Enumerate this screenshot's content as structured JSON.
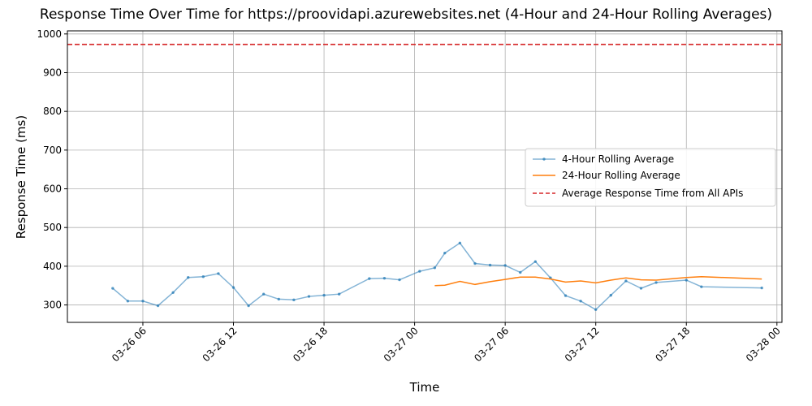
{
  "chart_data": {
    "type": "line",
    "title": "Response Time Over Time for https://proovidapi.azurewebsites.net (4-Hour and 24-Hour Rolling Averages)",
    "xlabel": "Time",
    "ylabel": "Response Time (ms)",
    "ylim": [
      255,
      1008
    ],
    "xlim": [
      "03-26 01:00",
      "03-28 00:20"
    ],
    "x_ticks": [
      "03-26 06",
      "03-26 12",
      "03-26 18",
      "03-27 00",
      "03-27 06",
      "03-27 12",
      "03-27 18",
      "03-28 00"
    ],
    "y_ticks": [
      300,
      400,
      500,
      600,
      700,
      800,
      900,
      1000
    ],
    "grid": true,
    "legend_position": "center-right",
    "series": [
      {
        "name": "4-Hour Rolling Average",
        "color": "#1f77b4",
        "style": "line-with-point-markers",
        "x": [
          "03-26 04:00",
          "03-26 05:00",
          "03-26 06:00",
          "03-26 07:00",
          "03-26 08:00",
          "03-26 09:00",
          "03-26 10:00",
          "03-26 11:00",
          "03-26 12:00",
          "03-26 13:00",
          "03-26 14:00",
          "03-26 15:00",
          "03-26 16:00",
          "03-26 17:00",
          "03-26 18:00",
          "03-26 19:00",
          "03-26 21:00",
          "03-26 22:00",
          "03-26 23:00",
          "03-27 00:20",
          "03-27 01:20",
          "03-27 02:00",
          "03-27 03:00",
          "03-27 04:00",
          "03-27 05:00",
          "03-27 06:00",
          "03-27 07:00",
          "03-27 08:00",
          "03-27 09:00",
          "03-27 10:00",
          "03-27 11:00",
          "03-27 12:00",
          "03-27 13:00",
          "03-27 14:00",
          "03-27 15:00",
          "03-27 16:00",
          "03-27 18:00",
          "03-27 19:00",
          "03-27 23:00"
        ],
        "values": [
          343,
          310,
          310,
          298,
          332,
          371,
          373,
          381,
          345,
          298,
          328,
          315,
          313,
          322,
          325,
          328,
          368,
          369,
          365,
          387,
          396,
          434,
          460,
          407,
          403,
          402,
          384,
          412,
          370,
          324,
          310,
          288,
          325,
          362,
          343,
          358,
          364,
          347,
          344
        ]
      },
      {
        "name": "24-Hour Rolling Average",
        "color": "#ff7f0e",
        "style": "line",
        "x": [
          "03-27 01:20",
          "03-27 02:00",
          "03-27 03:00",
          "03-27 04:00",
          "03-27 05:00",
          "03-27 06:00",
          "03-27 07:00",
          "03-27 08:00",
          "03-27 09:00",
          "03-27 10:00",
          "03-27 11:00",
          "03-27 12:00",
          "03-27 13:00",
          "03-27 14:00",
          "03-27 15:00",
          "03-27 16:00",
          "03-27 18:00",
          "03-27 19:00",
          "03-27 23:00"
        ],
        "values": [
          350,
          351,
          361,
          353,
          360,
          366,
          372,
          372,
          367,
          359,
          362,
          357,
          364,
          370,
          365,
          364,
          371,
          373,
          367
        ]
      },
      {
        "name": "Average Response Time from All APIs",
        "color": "#d62728",
        "style": "dashed-horizontal",
        "value": 973
      }
    ]
  }
}
